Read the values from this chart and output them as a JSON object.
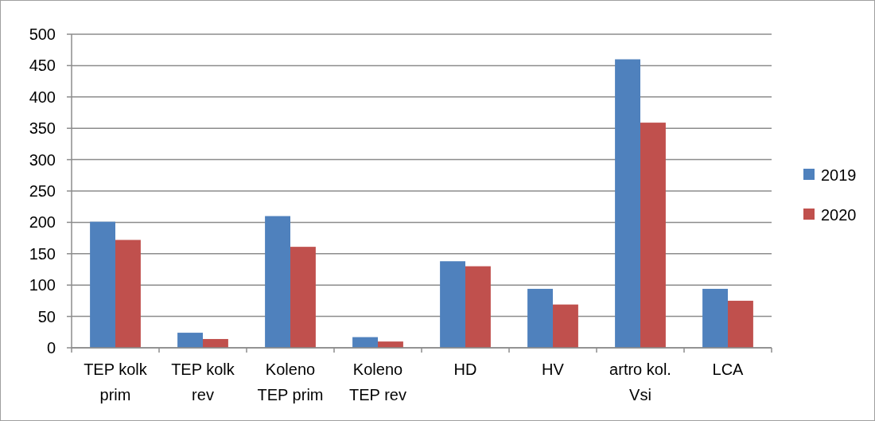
{
  "chart_data": {
    "type": "bar",
    "categories": [
      "TEP kolk prim",
      "TEP kolk rev",
      "Koleno TEP prim",
      "Koleno TEP rev",
      "HD",
      "HV",
      "artro kol. Vsi",
      "LCA"
    ],
    "series": [
      {
        "name": "2019",
        "color": "#4f81bd",
        "values": [
          201,
          24,
          210,
          17,
          138,
          94,
          460,
          94
        ]
      },
      {
        "name": "2020",
        "color": "#c0504d",
        "values": [
          172,
          14,
          161,
          10,
          130,
          69,
          359,
          75
        ]
      }
    ],
    "ylim": [
      0,
      500
    ],
    "yticks": [
      0,
      50,
      100,
      150,
      200,
      250,
      300,
      350,
      400,
      450,
      500
    ],
    "grid": "y",
    "legend": "right"
  }
}
